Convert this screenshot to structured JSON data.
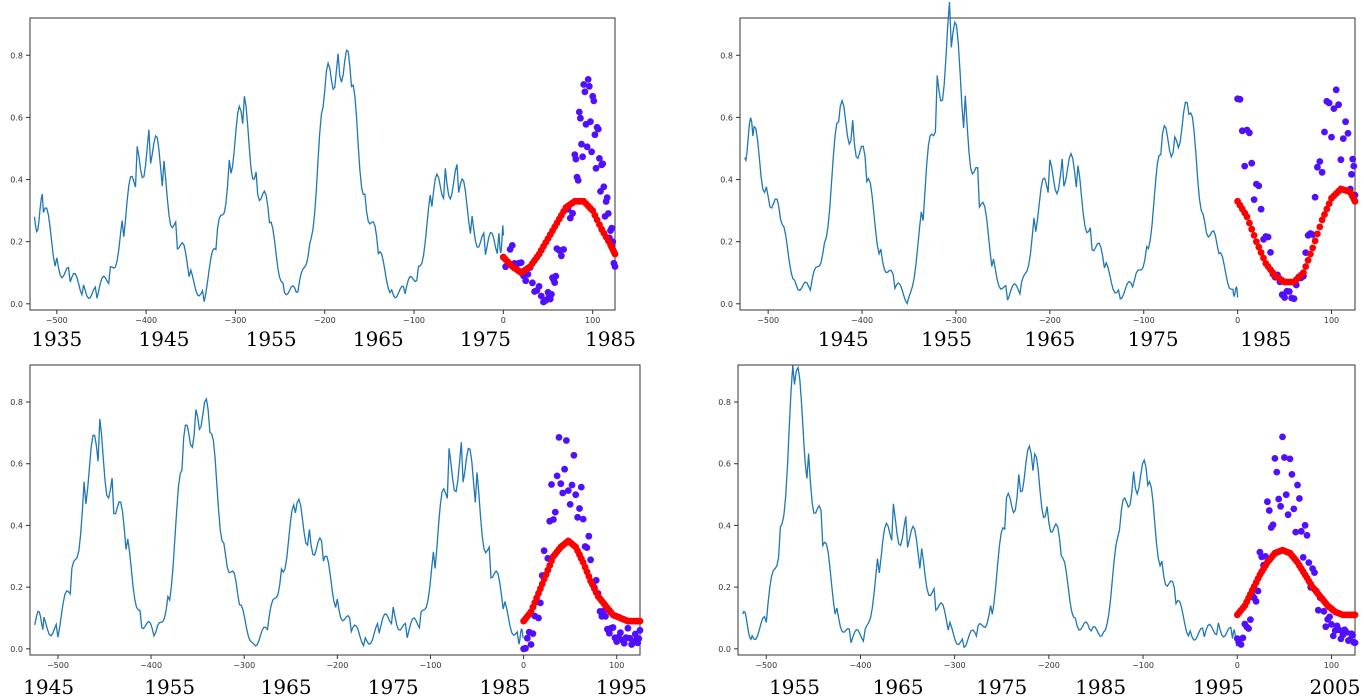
{
  "chart_data": [
    {
      "type": "line",
      "xlim": [
        -530,
        125
      ],
      "ylim": [
        -0.02,
        0.92
      ],
      "x_ticks": [
        "-500",
        "-400",
        "-300",
        "-200",
        "-100",
        "0",
        "100"
      ],
      "y_ticks": [
        "0.0",
        "0.2",
        "0.4",
        "0.6",
        "0.8"
      ],
      "year_labels": [
        {
          "text": "1935",
          "x": -500
        },
        {
          "text": "1945",
          "x": -380
        },
        {
          "text": "1955",
          "x": -260
        },
        {
          "text": "1965",
          "x": -140
        },
        {
          "text": "1975",
          "x": -20
        },
        {
          "text": "1985",
          "x": 120
        }
      ],
      "series": [
        {
          "color": "#1f77b4",
          "kind": "line",
          "x": [
            -525,
            -515,
            -500,
            -485,
            -470,
            -455,
            -440,
            -425,
            -410,
            -395,
            -380,
            -365,
            -350,
            -335,
            -320,
            -305,
            -290,
            -275,
            -260,
            -245,
            -230,
            -215,
            -200,
            -185,
            -170,
            -155,
            -140,
            -125,
            -110,
            -95,
            -80,
            -65,
            -50,
            -35,
            -20,
            -5,
            0
          ],
          "y": [
            0.28,
            0.3,
            0.14,
            0.08,
            0.05,
            0.03,
            0.1,
            0.25,
            0.45,
            0.52,
            0.4,
            0.22,
            0.08,
            0.03,
            0.2,
            0.5,
            0.58,
            0.42,
            0.22,
            0.06,
            0.02,
            0.25,
            0.62,
            0.88,
            0.65,
            0.38,
            0.15,
            0.05,
            0.03,
            0.12,
            0.32,
            0.42,
            0.38,
            0.26,
            0.18,
            0.2,
            0.22
          ]
        },
        {
          "color": "#5010ff",
          "kind": "scatter",
          "x": [
            0,
            10,
            20,
            30,
            40,
            50,
            55,
            60,
            70,
            80,
            85,
            90,
            95,
            100,
            105,
            110,
            115,
            120,
            125
          ],
          "y": [
            0.15,
            0.18,
            0.12,
            0.1,
            0.04,
            0.02,
            0.06,
            0.14,
            0.25,
            0.4,
            0.52,
            0.6,
            0.62,
            0.58,
            0.5,
            0.4,
            0.3,
            0.22,
            0.12
          ]
        },
        {
          "color": "#ff0000",
          "kind": "scatter",
          "x": [
            0,
            10,
            20,
            30,
            40,
            50,
            60,
            70,
            80,
            90,
            100,
            110,
            120,
            125
          ],
          "y": [
            0.15,
            0.12,
            0.1,
            0.12,
            0.16,
            0.21,
            0.26,
            0.31,
            0.33,
            0.33,
            0.3,
            0.24,
            0.19,
            0.16
          ]
        }
      ]
    },
    {
      "type": "line",
      "xlim": [
        -530,
        125
      ],
      "ylim": [
        -0.02,
        0.92
      ],
      "x_ticks": [
        "-500",
        "-400",
        "-300",
        "-200",
        "-100",
        "0",
        "100"
      ],
      "y_ticks": [
        "0.0",
        "0.2",
        "0.4",
        "0.6",
        "0.8"
      ],
      "year_labels": [
        {
          "text": "1945",
          "x": -420
        },
        {
          "text": "1955",
          "x": -310
        },
        {
          "text": "1965",
          "x": -200
        },
        {
          "text": "1975",
          "x": -90
        },
        {
          "text": "1985",
          "x": 30
        }
      ],
      "series": [
        {
          "color": "#1f77b4",
          "kind": "line",
          "x": [
            -525,
            -515,
            -500,
            -485,
            -470,
            -455,
            -440,
            -425,
            -410,
            -395,
            -380,
            -365,
            -350,
            -335,
            -320,
            -305,
            -290,
            -275,
            -260,
            -245,
            -230,
            -215,
            -200,
            -185,
            -170,
            -155,
            -140,
            -125,
            -110,
            -95,
            -80,
            -65,
            -50,
            -35,
            -20,
            -5,
            0
          ],
          "y": [
            0.55,
            0.5,
            0.4,
            0.22,
            0.08,
            0.03,
            0.22,
            0.55,
            0.62,
            0.38,
            0.18,
            0.05,
            0.02,
            0.28,
            0.7,
            0.88,
            0.62,
            0.35,
            0.12,
            0.03,
            0.05,
            0.28,
            0.4,
            0.45,
            0.38,
            0.22,
            0.1,
            0.04,
            0.05,
            0.22,
            0.48,
            0.6,
            0.55,
            0.3,
            0.14,
            0.06,
            0.02
          ]
        },
        {
          "color": "#5010ff",
          "kind": "scatter",
          "x": [
            0,
            10,
            20,
            30,
            40,
            50,
            60,
            70,
            80,
            90,
            100,
            110,
            120,
            125
          ],
          "y": [
            0.58,
            0.5,
            0.35,
            0.2,
            0.08,
            0.02,
            0.02,
            0.1,
            0.25,
            0.48,
            0.62,
            0.55,
            0.45,
            0.35
          ]
        },
        {
          "color": "#ff0000",
          "kind": "scatter",
          "x": [
            0,
            10,
            20,
            30,
            40,
            50,
            60,
            70,
            80,
            90,
            100,
            110,
            120,
            125
          ],
          "y": [
            0.33,
            0.28,
            0.2,
            0.13,
            0.09,
            0.07,
            0.07,
            0.1,
            0.18,
            0.27,
            0.34,
            0.37,
            0.36,
            0.33
          ]
        }
      ]
    },
    {
      "type": "line",
      "xlim": [
        -530,
        125
      ],
      "ylim": [
        -0.02,
        0.92
      ],
      "x_ticks": [
        "-500",
        "-400",
        "-300",
        "-200",
        "-100",
        "0",
        "100"
      ],
      "y_ticks": [
        "0.0",
        "0.2",
        "0.4",
        "0.6",
        "0.8"
      ],
      "year_labels": [
        {
          "text": "1945",
          "x": -510
        },
        {
          "text": "1955",
          "x": -380
        },
        {
          "text": "1965",
          "x": -255
        },
        {
          "text": "1975",
          "x": -140
        },
        {
          "text": "1985",
          "x": -20
        },
        {
          "text": "1995",
          "x": 105
        }
      ],
      "series": [
        {
          "color": "#1f77b4",
          "kind": "line",
          "x": [
            -525,
            -515,
            -500,
            -485,
            -470,
            -455,
            -440,
            -425,
            -410,
            -395,
            -380,
            -365,
            -350,
            -335,
            -320,
            -305,
            -290,
            -275,
            -260,
            -245,
            -230,
            -215,
            -200,
            -185,
            -170,
            -155,
            -140,
            -125,
            -110,
            -95,
            -80,
            -65,
            -50,
            -35,
            -20,
            -5,
            0
          ],
          "y": [
            0.1,
            0.08,
            0.06,
            0.22,
            0.55,
            0.65,
            0.52,
            0.3,
            0.1,
            0.03,
            0.2,
            0.6,
            0.86,
            0.62,
            0.35,
            0.12,
            0.03,
            0.05,
            0.28,
            0.42,
            0.4,
            0.28,
            0.16,
            0.06,
            0.03,
            0.06,
            0.12,
            0.05,
            0.1,
            0.3,
            0.58,
            0.62,
            0.5,
            0.28,
            0.12,
            0.04,
            0.04
          ]
        },
        {
          "color": "#5010ff",
          "kind": "scatter",
          "x": [
            0,
            8,
            16,
            24,
            32,
            40,
            48,
            56,
            64,
            72,
            80,
            88,
            96,
            104,
            112,
            120,
            125
          ],
          "y": [
            0.0,
            0.04,
            0.14,
            0.3,
            0.5,
            0.62,
            0.58,
            0.55,
            0.45,
            0.3,
            0.18,
            0.1,
            0.06,
            0.04,
            0.05,
            0.03,
            0.06
          ]
        },
        {
          "color": "#ff0000",
          "kind": "scatter",
          "x": [
            0,
            8,
            16,
            24,
            32,
            40,
            48,
            56,
            64,
            72,
            80,
            88,
            96,
            104,
            112,
            120,
            125
          ],
          "y": [
            0.09,
            0.12,
            0.18,
            0.24,
            0.3,
            0.33,
            0.35,
            0.33,
            0.28,
            0.22,
            0.17,
            0.14,
            0.11,
            0.1,
            0.09,
            0.09,
            0.09
          ]
        }
      ]
    },
    {
      "type": "line",
      "xlim": [
        -530,
        125
      ],
      "ylim": [
        -0.02,
        0.92
      ],
      "x_ticks": [
        "-500",
        "-400",
        "-300",
        "-200",
        "-100",
        "0",
        "100"
      ],
      "y_ticks": [
        "0.0",
        "0.2",
        "0.4",
        "0.6",
        "0.8"
      ],
      "year_labels": [
        {
          "text": "1955",
          "x": -470
        },
        {
          "text": "1965",
          "x": -360
        },
        {
          "text": "1975",
          "x": -250
        },
        {
          "text": "1985",
          "x": -145
        },
        {
          "text": "1995",
          "x": -20
        },
        {
          "text": "2005",
          "x": 105
        }
      ],
      "series": [
        {
          "color": "#1f77b4",
          "kind": "line",
          "x": [
            -525,
            -515,
            -500,
            -485,
            -470,
            -455,
            -440,
            -425,
            -410,
            -395,
            -380,
            -365,
            -350,
            -335,
            -320,
            -305,
            -290,
            -275,
            -260,
            -245,
            -230,
            -215,
            -200,
            -185,
            -170,
            -155,
            -140,
            -125,
            -110,
            -95,
            -80,
            -65,
            -50,
            -35,
            -20,
            -5,
            0
          ],
          "y": [
            0.1,
            0.05,
            0.08,
            0.4,
            0.86,
            0.62,
            0.35,
            0.12,
            0.03,
            0.05,
            0.28,
            0.42,
            0.38,
            0.28,
            0.16,
            0.06,
            0.02,
            0.05,
            0.15,
            0.42,
            0.6,
            0.55,
            0.48,
            0.25,
            0.1,
            0.04,
            0.08,
            0.35,
            0.62,
            0.5,
            0.3,
            0.14,
            0.06,
            0.04,
            0.08,
            0.04,
            0.03
          ]
        },
        {
          "color": "#5010ff",
          "kind": "scatter",
          "x": [
            0,
            8,
            16,
            24,
            32,
            40,
            48,
            56,
            64,
            72,
            80,
            88,
            96,
            104,
            112,
            120,
            125
          ],
          "y": [
            0.02,
            0.06,
            0.14,
            0.26,
            0.4,
            0.52,
            0.58,
            0.52,
            0.45,
            0.34,
            0.22,
            0.14,
            0.08,
            0.05,
            0.04,
            0.03,
            0.02
          ]
        },
        {
          "color": "#ff0000",
          "kind": "scatter",
          "x": [
            0,
            8,
            16,
            24,
            32,
            40,
            48,
            56,
            64,
            72,
            80,
            88,
            96,
            104,
            112,
            120,
            125
          ],
          "y": [
            0.11,
            0.14,
            0.19,
            0.24,
            0.28,
            0.31,
            0.32,
            0.31,
            0.28,
            0.24,
            0.2,
            0.17,
            0.14,
            0.12,
            0.11,
            0.11,
            0.11
          ]
        }
      ]
    }
  ]
}
